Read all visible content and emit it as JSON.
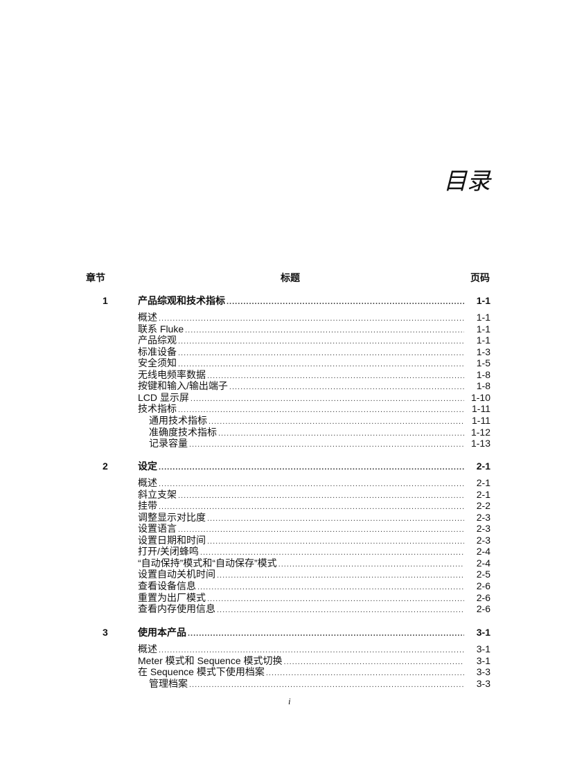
{
  "title": "目录",
  "header": {
    "chapter": "章节",
    "heading": "标题",
    "page": "页码"
  },
  "chapters": [
    {
      "number": "1",
      "title": "产品综观和技术指标",
      "page": "1-1",
      "entries": [
        {
          "title": "概述",
          "page": "1-1",
          "level": 1
        },
        {
          "title": "联系 Fluke",
          "page": "1-1",
          "level": 1
        },
        {
          "title": "产品综观",
          "page": "1-1",
          "level": 1
        },
        {
          "title": "标准设备",
          "page": "1-3",
          "level": 1
        },
        {
          "title": "安全须知",
          "page": "1-5",
          "level": 1
        },
        {
          "title": "无线电频率数据",
          "page": "1-8",
          "level": 1
        },
        {
          "title": "按键和输入/输出端子",
          "page": "1-8",
          "level": 1
        },
        {
          "title": "LCD 显示屏",
          "page": "1-10",
          "level": 1
        },
        {
          "title": "技术指标",
          "page": "1-11",
          "level": 1
        },
        {
          "title": "通用技术指标",
          "page": "1-11",
          "level": 2
        },
        {
          "title": "准确度技术指标",
          "page": "1-12",
          "level": 2
        },
        {
          "title": "记录容量",
          "page": "1-13",
          "level": 2
        }
      ]
    },
    {
      "number": "2",
      "title": "设定",
      "page": "2-1",
      "entries": [
        {
          "title": "概述",
          "page": "2-1",
          "level": 1
        },
        {
          "title": "斜立支架",
          "page": "2-1",
          "level": 1
        },
        {
          "title": "挂带",
          "page": "2-2",
          "level": 1
        },
        {
          "title": "调整显示对比度",
          "page": "2-3",
          "level": 1
        },
        {
          "title": "设置语言",
          "page": "2-3",
          "level": 1
        },
        {
          "title": "设置日期和时间",
          "page": "2-3",
          "level": 1
        },
        {
          "title": "打开/关闭蜂鸣",
          "page": "2-4",
          "level": 1
        },
        {
          "title": "“自动保持”模式和“自动保存”模式",
          "page": "2-4",
          "level": 1
        },
        {
          "title": "设置自动关机时间",
          "page": "2-5",
          "level": 1
        },
        {
          "title": "查看设备信息",
          "page": "2-6",
          "level": 1
        },
        {
          "title": "重置为出厂模式",
          "page": "2-6",
          "level": 1
        },
        {
          "title": "查看内存使用信息",
          "page": "2-6",
          "level": 1
        }
      ]
    },
    {
      "number": "3",
      "title": "使用本产品",
      "page": "3-1",
      "entries": [
        {
          "title": "概述",
          "page": "3-1",
          "level": 1
        },
        {
          "title": "Meter 模式和 Sequence 模式切换",
          "page": "3-1",
          "level": 1
        },
        {
          "title": "在 Sequence 模式下使用档案",
          "page": "3-3",
          "level": 1
        },
        {
          "title": "管理档案",
          "page": "3-3",
          "level": 2
        }
      ]
    }
  ],
  "footer": {
    "page_number": "i"
  }
}
